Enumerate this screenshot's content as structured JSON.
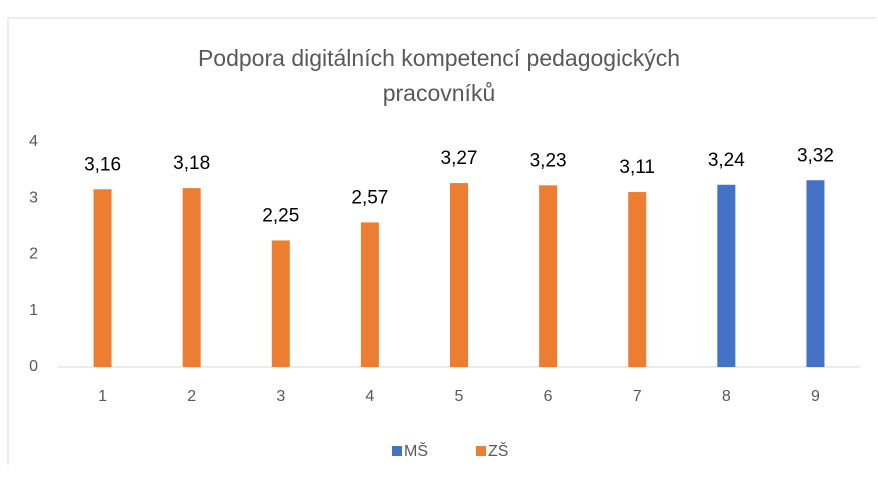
{
  "chart_data": {
    "type": "bar",
    "title": [
      "Podpora digitálních kompetencí pedagogických",
      "pracovníků"
    ],
    "categories": [
      "1",
      "2",
      "3",
      "4",
      "5",
      "6",
      "7",
      "8",
      "9"
    ],
    "series": [
      {
        "name": "MŠ",
        "color": "#4472c4",
        "values": [
          null,
          null,
          null,
          null,
          null,
          null,
          null,
          3.24,
          3.32
        ],
        "value_labels": [
          null,
          null,
          null,
          null,
          null,
          null,
          null,
          "3,24",
          "3,32"
        ]
      },
      {
        "name": "ZŠ",
        "color": "#ed7d31",
        "values": [
          3.16,
          3.18,
          2.25,
          2.57,
          3.27,
          3.23,
          3.11,
          null,
          null
        ],
        "value_labels": [
          "3,16",
          "3,18",
          "2,25",
          "2,57",
          "3,27",
          "3,23",
          "3,11",
          null,
          null
        ]
      }
    ],
    "ylim": [
      0,
      4
    ],
    "yticks": [
      0,
      1,
      2,
      3,
      4
    ],
    "grid": false,
    "legend": "bottom"
  }
}
